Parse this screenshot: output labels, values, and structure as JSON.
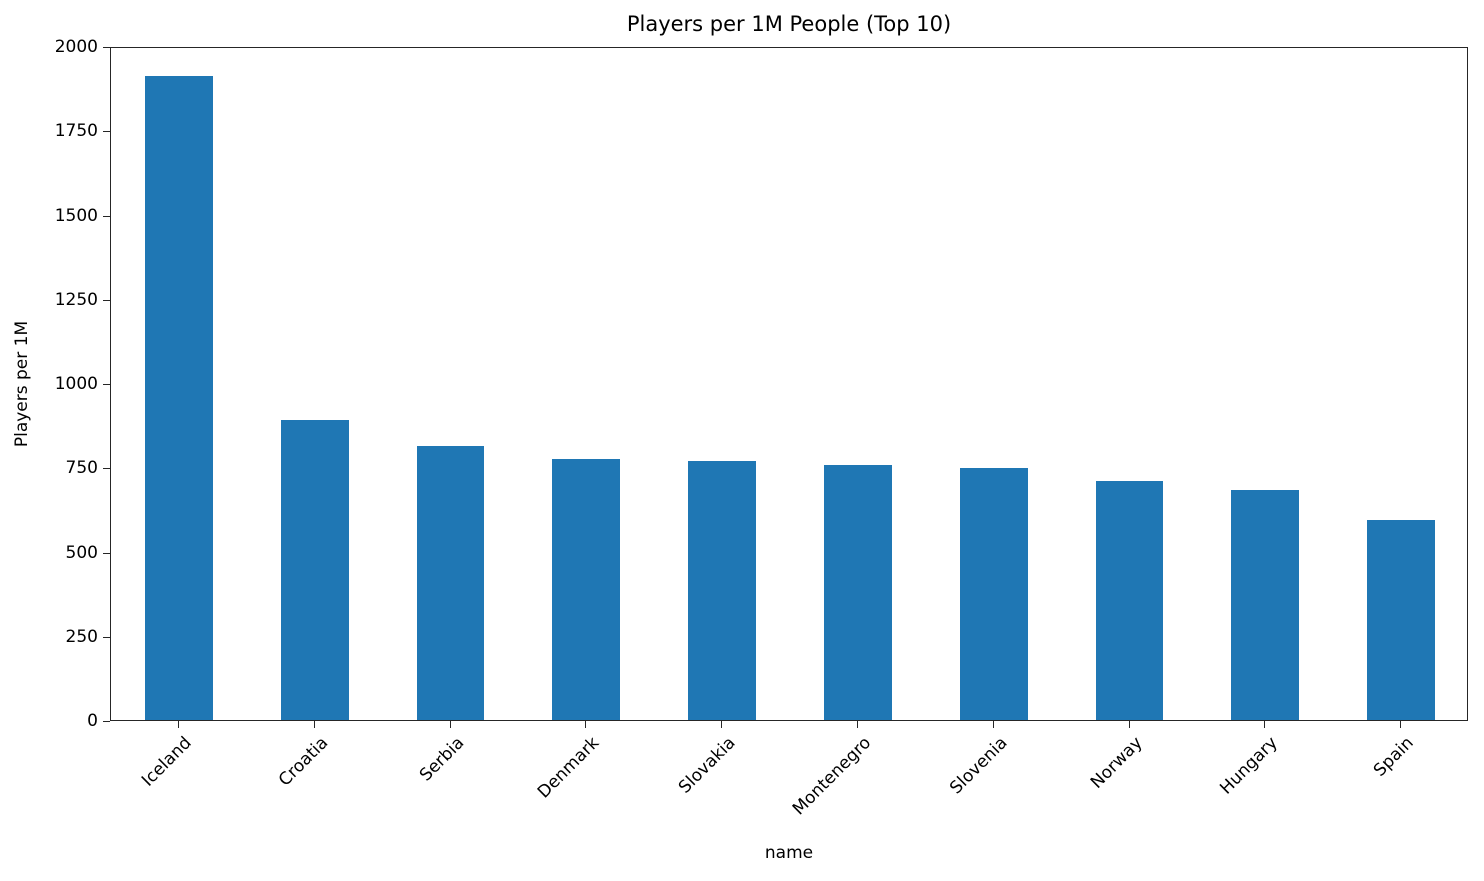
{
  "chart_data": {
    "type": "bar",
    "title": "Players per 1M People (Top 10)",
    "xlabel": "name",
    "ylabel": "Players per 1M",
    "categories": [
      "Iceland",
      "Croatia",
      "Serbia",
      "Denmark",
      "Slovakia",
      "Montenegro",
      "Slovenia",
      "Norway",
      "Hungary",
      "Spain"
    ],
    "values": [
      1911,
      889,
      814,
      776,
      770,
      758,
      749,
      710,
      684,
      594
    ],
    "ylim": [
      0,
      2000
    ],
    "yticks": [
      0,
      250,
      500,
      750,
      1000,
      1250,
      1500,
      1750,
      2000
    ],
    "grid": false,
    "legend": null,
    "bar_color": "#1f77b4"
  }
}
